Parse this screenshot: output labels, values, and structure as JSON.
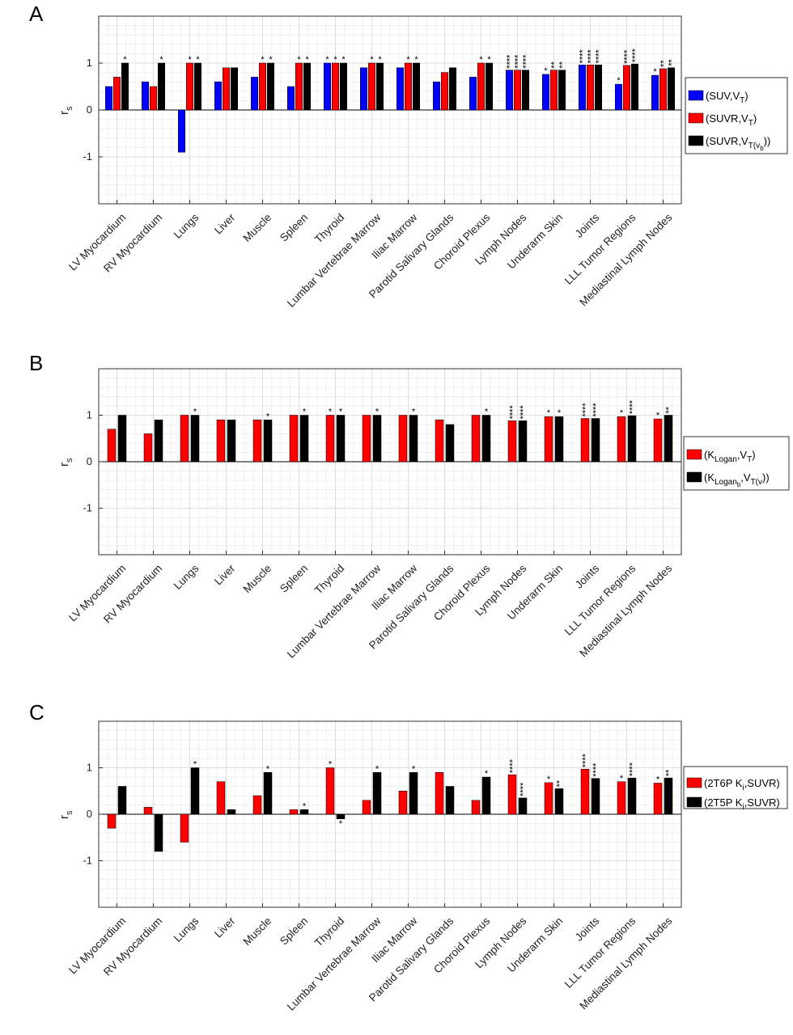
{
  "chart_data": [
    {
      "type": "bar",
      "panel": "A",
      "ylabel": "r",
      "ylabel_sub": "s",
      "ylim": [
        -2,
        2
      ],
      "yticks": [
        "1",
        "0",
        "-1"
      ],
      "grid": true,
      "legend_placement": "right",
      "categories": [
        "LV Myocardium",
        "RV Myocardium",
        "Lungs",
        "Liver",
        "Muscle",
        "Spleen",
        "Thyroid",
        "Lumbar Vertebrae Marrow",
        "Iliac Marrow",
        "Parotid Salivary Glands",
        "Choroid Plexus",
        "Lymph Nodes",
        "Underarm Skin",
        "Joints",
        "LLL Tumor Regions",
        "Mediastinal Lymph Nodes"
      ],
      "series": [
        {
          "legend": {
            "pre": "(SUV,V",
            "sub": "T",
            "post": ")"
          },
          "color": "#0000ff",
          "values": [
            0.5,
            0.6,
            -0.9,
            0.6,
            0.7,
            0.5,
            1.0,
            0.9,
            0.9,
            0.6,
            0.7,
            0.85,
            0.76,
            0.96,
            0.55,
            0.74
          ],
          "stars": [
            "",
            "",
            "",
            "",
            "",
            "",
            "*",
            "",
            "",
            "",
            "",
            "****",
            "*",
            "****",
            "*",
            "*"
          ]
        },
        {
          "legend": {
            "pre": "(SUVR,V",
            "sub": "T",
            "post": ")"
          },
          "color": "#ff0000",
          "values": [
            0.7,
            0.5,
            1.0,
            0.9,
            1.0,
            1.0,
            1.0,
            1.0,
            1.0,
            0.8,
            1.0,
            0.85,
            0.85,
            0.96,
            0.95,
            0.88
          ],
          "stars": [
            "",
            "",
            "*",
            "",
            "*",
            "*",
            "*",
            "*",
            "*",
            "",
            "*",
            "****",
            "**",
            "****",
            "****",
            "**"
          ]
        },
        {
          "legend": {
            "pre": "(SUVR,V",
            "sub": "T(v",
            "subsub": "b",
            "post": "))"
          },
          "color": "#000000",
          "values": [
            1.0,
            1.0,
            1.0,
            0.9,
            1.0,
            1.0,
            1.0,
            1.0,
            1.0,
            0.9,
            1.0,
            0.85,
            0.85,
            0.96,
            0.98,
            0.9
          ],
          "stars": [
            "*",
            "*",
            "*",
            "",
            "*",
            "*",
            "*",
            "*",
            "*",
            "",
            "*",
            "****",
            "**",
            "****",
            "****",
            "**"
          ]
        }
      ]
    },
    {
      "type": "bar",
      "panel": "B",
      "ylabel": "r",
      "ylabel_sub": "s",
      "ylim": [
        -2,
        2
      ],
      "yticks": [
        "1",
        "0",
        "-1"
      ],
      "grid": true,
      "legend_placement": "right",
      "categories": [
        "LV Myocardium",
        "RV Myocardium",
        "Lungs",
        "Liver",
        "Muscle",
        "Spleen",
        "Thyroid",
        "Lumbar Vertebrae Marrow",
        "Iliac Marrow",
        "Parotid Salivary Glands",
        "Choroid Plexus",
        "Lymph Nodes",
        "Underarm Skin",
        "Joints",
        "LLL Tumor Regions",
        "Mediastinal Lymph Nodes"
      ],
      "series": [
        {
          "legend": {
            "pre": "(K",
            "sub": "Logan",
            "mid": ",V",
            "sub2": "T",
            "post": ")"
          },
          "color": "#ff0000",
          "values": [
            0.7,
            0.6,
            1.0,
            0.9,
            0.9,
            1.0,
            1.0,
            1.0,
            1.0,
            0.9,
            1.0,
            0.88,
            0.97,
            0.93,
            0.97,
            0.92
          ],
          "stars": [
            "",
            "",
            "",
            "",
            "",
            "",
            "*",
            "",
            "",
            "",
            "",
            "****",
            "*",
            "****",
            "*",
            "*"
          ]
        },
        {
          "legend": {
            "pre": "(K",
            "sub": "Logan",
            "mid": ",V",
            "sub2": "T(v",
            "subsub": "b",
            "post": "))"
          },
          "color": "#000000",
          "values": [
            1.0,
            0.9,
            1.0,
            0.9,
            0.9,
            1.0,
            1.0,
            1.0,
            1.0,
            0.8,
            1.0,
            0.88,
            0.97,
            0.93,
            0.99,
            1.0
          ],
          "stars": [
            "",
            "",
            "*",
            "",
            "*",
            "*",
            "*",
            "*",
            "*",
            "",
            "*",
            "****",
            "*",
            "****",
            "****",
            "**"
          ]
        }
      ]
    },
    {
      "type": "bar",
      "panel": "C",
      "ylabel": "r",
      "ylabel_sub": "s",
      "ylim": [
        -2,
        2
      ],
      "yticks": [
        "1",
        "0",
        "-1"
      ],
      "grid": true,
      "legend_placement": "right",
      "categories": [
        "LV Myocardium",
        "RV Myocardium",
        "Lungs",
        "Liver",
        "Muscle",
        "Spleen",
        "Thyroid",
        "Lumbar Vertebrae Marrow",
        "Iliac Marrow",
        "Parotid Salivary Glands",
        "Choroid Plexus",
        "Lymph Nodes",
        "Underarm Skin",
        "Joints",
        "LLL Tumor Regions",
        "Mediastinal Lymph Nodes"
      ],
      "series": [
        {
          "legend": {
            "pre": "(2T6P K",
            "sub": "i",
            "post": ",SUVR)"
          },
          "color": "#ff0000",
          "values": [
            -0.3,
            0.15,
            -0.6,
            0.7,
            0.4,
            0.1,
            1.0,
            0.3,
            0.5,
            0.9,
            0.3,
            0.85,
            0.68,
            0.97,
            0.7,
            0.67
          ],
          "stars": [
            "",
            "",
            "",
            "",
            "",
            "",
            "*",
            "",
            "",
            "",
            "",
            "****",
            "*",
            "****",
            "*",
            "*"
          ]
        },
        {
          "legend": {
            "pre": "(2T5P K",
            "sub": "i",
            "post": ",SUVR)"
          },
          "color": "#000000",
          "values": [
            0.6,
            -0.8,
            1.0,
            0.1,
            0.9,
            0.1,
            -0.1,
            0.9,
            0.9,
            0.6,
            0.8,
            0.35,
            0.55,
            0.77,
            0.78,
            0.78
          ],
          "stars": [
            "",
            "",
            "*",
            "",
            "*",
            "*",
            "*",
            "*",
            "*",
            "",
            "*",
            "****",
            "**",
            "****",
            "****",
            "**"
          ]
        }
      ]
    }
  ]
}
